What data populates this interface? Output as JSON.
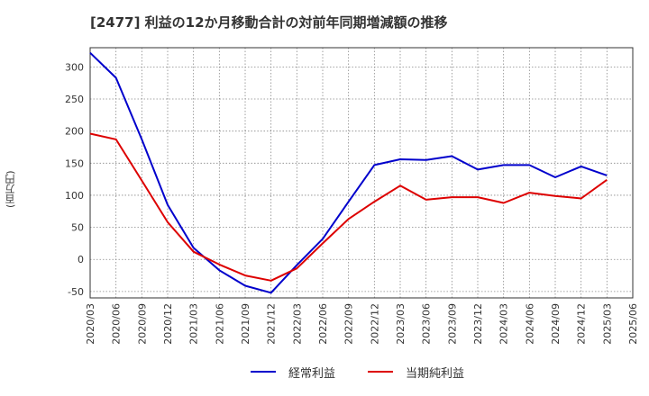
{
  "chart_data": {
    "type": "line",
    "title": "[2477]  利益の12か月移動合計の対前年同期増減額の推移",
    "ylabel": "(百万円)",
    "xlabel": "",
    "ylim": [
      -60,
      330
    ],
    "yticks": [
      -50,
      0,
      50,
      100,
      150,
      200,
      250,
      300
    ],
    "categories": [
      "2020/03",
      "2020/06",
      "2020/09",
      "2020/12",
      "2021/03",
      "2021/06",
      "2021/09",
      "2021/12",
      "2022/03",
      "2022/06",
      "2022/09",
      "2022/12",
      "2023/03",
      "2023/06",
      "2023/09",
      "2023/12",
      "2024/03",
      "2024/06",
      "2024/09",
      "2024/12",
      "2025/03",
      "2025/06"
    ],
    "series": [
      {
        "name": "経常利益",
        "color": "#0000cc",
        "values": [
          322,
          283,
          187,
          85,
          18,
          -17,
          -41,
          -52,
          -9,
          32,
          90,
          147,
          156,
          155,
          161,
          140,
          147,
          147,
          128,
          145,
          131,
          null
        ]
      },
      {
        "name": "当期純利益",
        "color": "#dd0000",
        "values": [
          196,
          187,
          123,
          58,
          12,
          -8,
          -25,
          -33,
          -14,
          25,
          63,
          90,
          115,
          93,
          97,
          97,
          88,
          104,
          99,
          95,
          124,
          null
        ]
      }
    ],
    "grid": true,
    "legend_position": "bottom"
  }
}
